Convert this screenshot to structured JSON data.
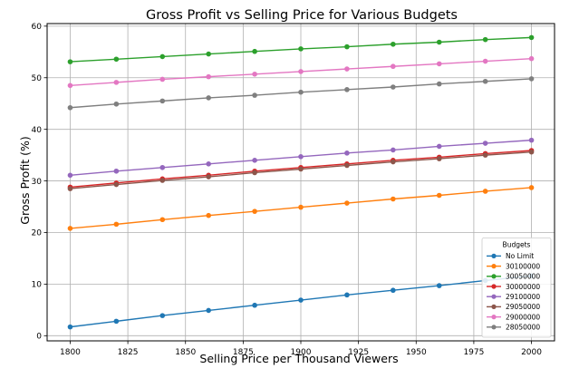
{
  "chart_data": {
    "type": "line",
    "title": "Gross Profit vs Selling Price for Various Budgets",
    "xlabel": "Selling Price per Thousand Viewers",
    "ylabel": "Gross Profit (%)",
    "xlim": [
      1790,
      2010
    ],
    "ylim": [
      -1,
      60.5
    ],
    "xticks": [
      1800,
      1825,
      1850,
      1875,
      1900,
      1925,
      1950,
      1975,
      2000
    ],
    "yticks": [
      0,
      10,
      20,
      30,
      40,
      50,
      60
    ],
    "grid": true,
    "legend": {
      "title": "Budgets",
      "placement": "lower-right"
    },
    "x": [
      1800,
      1820,
      1840,
      1860,
      1880,
      1900,
      1920,
      1940,
      1960,
      1980,
      2000
    ],
    "series": [
      {
        "name": "No Limit",
        "color": "#1f77b4",
        "values": [
          1.7,
          2.8,
          3.9,
          4.9,
          5.9,
          6.9,
          7.9,
          8.8,
          9.7,
          10.7,
          11.6
        ]
      },
      {
        "name": "30100000",
        "color": "#ff7f0e",
        "values": [
          20.8,
          21.6,
          22.5,
          23.3,
          24.1,
          24.9,
          25.7,
          26.5,
          27.2,
          28.0,
          28.7
        ]
      },
      {
        "name": "30050000",
        "color": "#2ca02c",
        "values": [
          53.1,
          53.6,
          54.1,
          54.6,
          55.1,
          55.6,
          56.0,
          56.5,
          56.9,
          57.4,
          57.8
        ]
      },
      {
        "name": "30000000",
        "color": "#d62728",
        "values": [
          28.8,
          29.6,
          30.4,
          31.1,
          31.9,
          32.6,
          33.3,
          34.0,
          34.6,
          35.3,
          35.9
        ]
      },
      {
        "name": "29100000",
        "color": "#9467bd",
        "values": [
          31.1,
          31.9,
          32.6,
          33.3,
          34.0,
          34.7,
          35.4,
          36.0,
          36.7,
          37.3,
          37.9
        ]
      },
      {
        "name": "29050000",
        "color": "#8c564b",
        "values": [
          28.5,
          29.3,
          30.1,
          30.8,
          31.6,
          32.3,
          33.0,
          33.7,
          34.3,
          35.0,
          35.6
        ]
      },
      {
        "name": "29000000",
        "color": "#e377c2",
        "values": [
          48.5,
          49.1,
          49.7,
          50.2,
          50.7,
          51.2,
          51.7,
          52.2,
          52.7,
          53.2,
          53.7
        ]
      },
      {
        "name": "28050000",
        "color": "#7f7f7f",
        "values": [
          44.2,
          44.9,
          45.5,
          46.1,
          46.6,
          47.2,
          47.7,
          48.2,
          48.8,
          49.3,
          49.8
        ]
      }
    ]
  }
}
